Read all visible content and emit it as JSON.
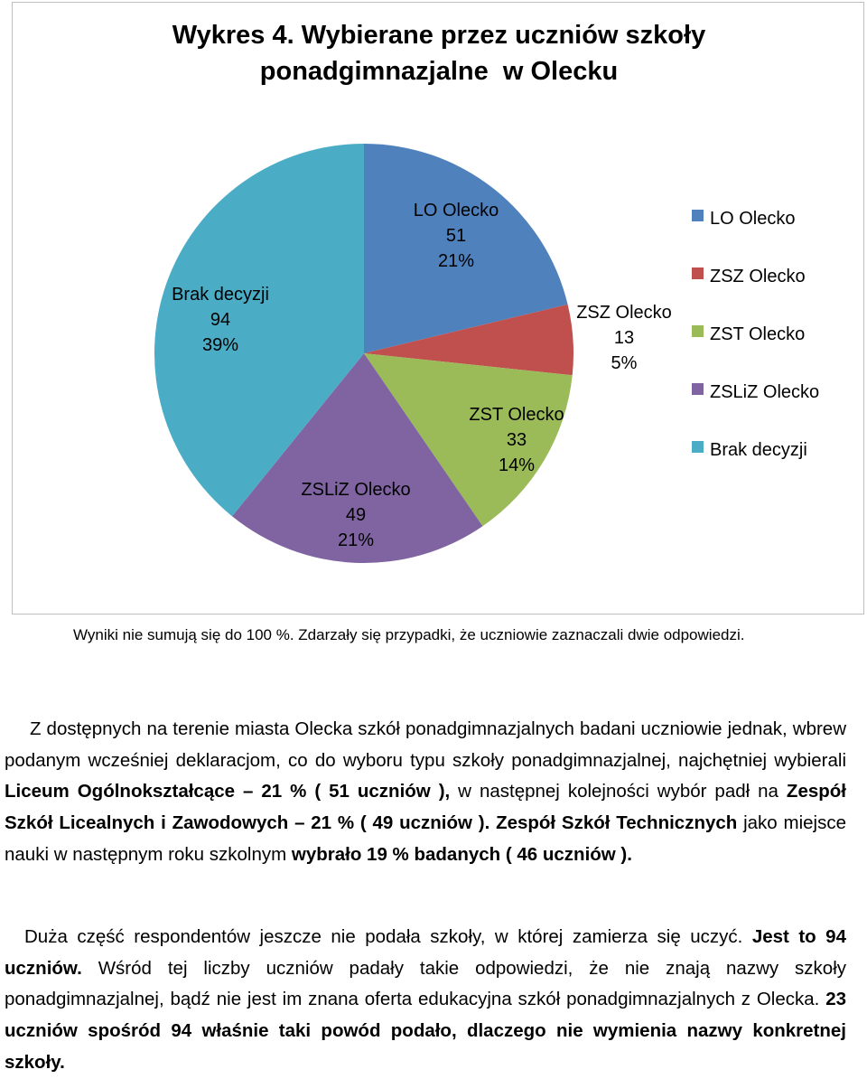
{
  "chart_data": {
    "type": "pie",
    "title_lines": [
      "Wykres 4. Wybierane przez uczniów szkoły",
      "ponadgimnazjalne  w Olecku"
    ],
    "slices": [
      {
        "name": "LO Olecko",
        "value": 51,
        "percent": "21%",
        "color": "#4f81bd"
      },
      {
        "name": "ZSZ Olecko",
        "value": 13,
        "percent": "5%",
        "color": "#c0504d"
      },
      {
        "name": "ZST Olecko",
        "value": 33,
        "percent": "14%",
        "color": "#9bbb59"
      },
      {
        "name": "ZSLiZ Olecko",
        "value": 49,
        "percent": "21%",
        "color": "#8064a2"
      },
      {
        "name": "Brak decyzji",
        "value": 94,
        "percent": "39%",
        "color": "#4bacc6"
      }
    ],
    "legend": [
      "LO Olecko",
      "ZSZ Olecko",
      "ZST Olecko",
      "ZSLiZ Olecko",
      "Brak decyzji"
    ],
    "legend_position": "right"
  },
  "note": "Wyniki nie sumują się do 100 %. Zdarzały się przypadki, że uczniowie zaznaczali dwie odpowiedzi.",
  "paragraph1": [
    {
      "text": "Z dostępnych na terenie miasta Olecka szkół ponadgimnazjalnych badani uczniowie jednak, wbrew podanym wcześniej deklaracjom, co do wyboru typu szkoły ponadgimnazjalnej, najchętniej wybierali ",
      "bold": false
    },
    {
      "text": "Liceum Ogólnokształcące – 21 % ( 51 uczniów ),",
      "bold": true
    },
    {
      "text": " w następnej kolejności wybór padł na ",
      "bold": false
    },
    {
      "text": "Zespół Szkół Licealnych i Zawodowych – 21 % ( 49 uczniów ).",
      "bold": true
    },
    {
      "text": " ",
      "bold": false
    },
    {
      "text": "Zespół Szkół Technicznych",
      "bold": true
    },
    {
      "text": " jako miejsce nauki w następnym roku szkolnym ",
      "bold": false
    },
    {
      "text": "wybrało 19 % badanych ( 46 uczniów ).",
      "bold": true
    }
  ],
  "paragraph2": [
    {
      "text": "Duża część respondentów jeszcze nie podała szkoły, w której zamierza się uczyć. ",
      "bold": false
    },
    {
      "text": "Jest to 94 uczniów.",
      "bold": true
    },
    {
      "text": " Wśród tej liczby uczniów padały takie odpowiedzi, że nie znają nazwy szkoły ponadgimnazjalnej, bądź nie jest im znana oferta edukacyjna szkół ponadgimnazjalnych z Olecka. ",
      "bold": false
    },
    {
      "text": "23 uczniów spośród 94 właśnie taki  powód podało, dlaczego nie wymienia  nazwy konkretnej szkoły.",
      "bold": true
    }
  ]
}
